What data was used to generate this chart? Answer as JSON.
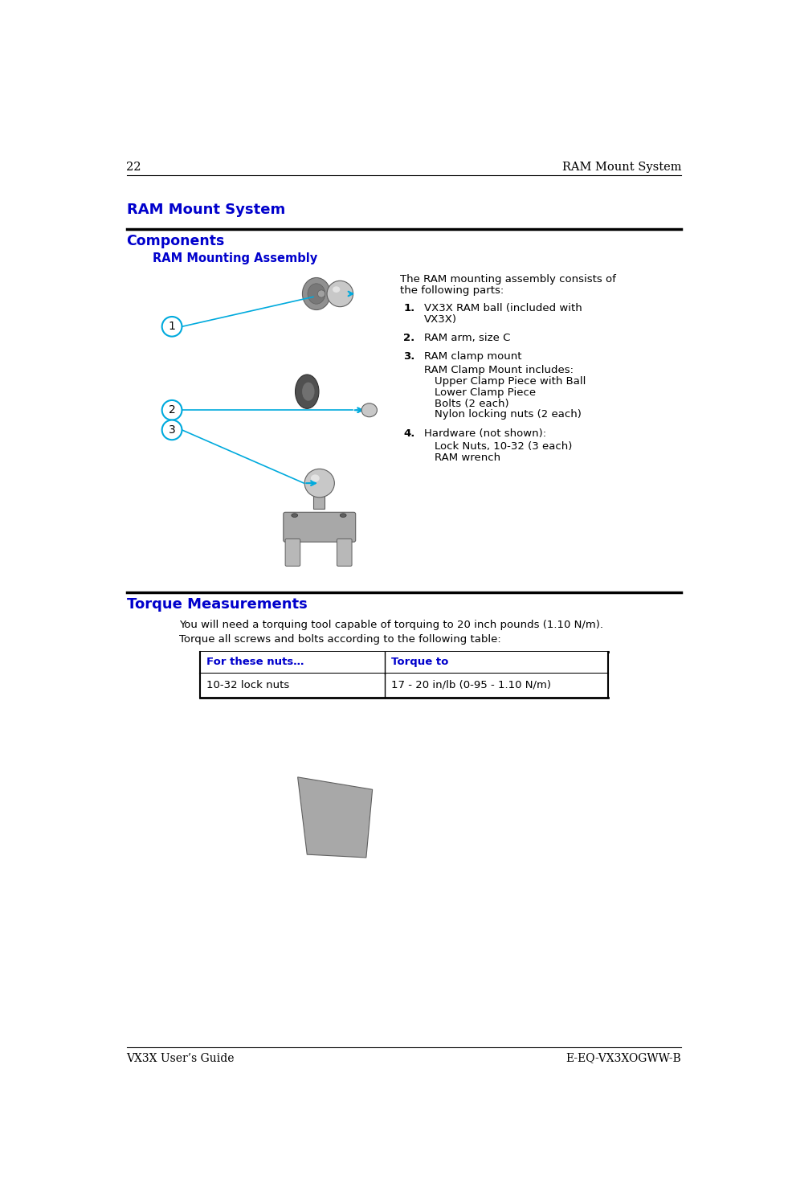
{
  "page_number": "22",
  "header_right": "RAM Mount System",
  "footer_left": "VX3X User’s Guide",
  "footer_right": "E-EQ-VX3XOGWW-B",
  "section_title": "RAM Mount System",
  "subsection_title": "Components",
  "assembly_title": "RAM Mounting Assembly",
  "intro_text": "The RAM mounting assembly consists of\nthe following parts:",
  "item1_num": "1.",
  "item1_text": "VX3X RAM ball (included with\nVX3X)",
  "item2_num": "2.",
  "item2_text": "RAM arm, size C",
  "item3_num": "3.",
  "item3_text": "RAM clamp mount",
  "clamp_sub0": "RAM Clamp Mount includes:",
  "clamp_sub1": "Upper Clamp Piece with Ball",
  "clamp_sub2": "Lower Clamp Piece",
  "clamp_sub3": "Bolts (2 each)",
  "clamp_sub4": "Nylon locking nuts (2 each)",
  "item4_num": "4.",
  "item4_text": "Hardware (not shown):",
  "hw_sub1": "Lock Nuts, 10-32 (3 each)",
  "hw_sub2": "RAM wrench",
  "section2_title": "Torque Measurements",
  "torque_para1": "You will need a torquing tool capable of torquing to 20 inch pounds (1.10 N/m).",
  "torque_para2": "Torque all screws and bolts according to the following table:",
  "table_col1_header": "For these nuts…",
  "table_col2_header": "Torque to",
  "table_col1_row": "10-32 lock nuts",
  "table_col2_row": "17 - 20 in/lb (0-95 - 1.10 N/m)",
  "blue": "#0000CC",
  "black": "#000000",
  "cyan_arrow": "#00AADD",
  "gray_light": "#C8C8C8",
  "gray_mid": "#909090",
  "gray_dark": "#606060"
}
